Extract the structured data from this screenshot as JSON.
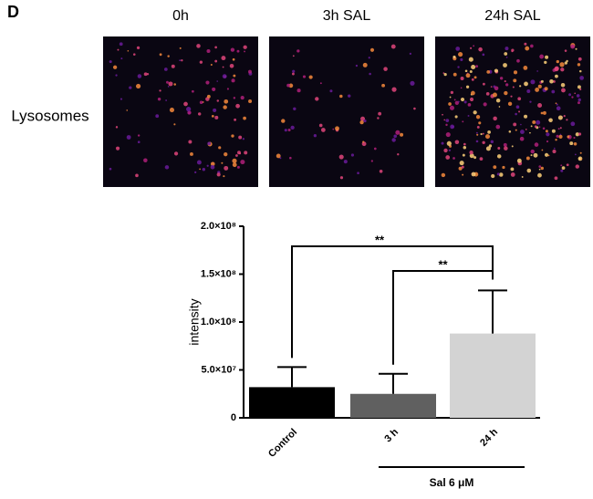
{
  "panel": {
    "label": "D",
    "row_label": "Lysosomes",
    "image_titles": [
      "0h",
      "3h SAL",
      "24h SAL"
    ]
  },
  "chart_data": {
    "type": "bar",
    "y_label": "intensity",
    "categories": [
      "Control",
      "3 h",
      "24 h"
    ],
    "values": [
      32000000,
      25000000,
      88000000
    ],
    "errors": [
      21000000,
      21000000,
      45000000
    ],
    "colors": [
      "#000000",
      "#606060",
      "#d3d3d3"
    ],
    "ylim": [
      0,
      200000000
    ],
    "yticks": [
      0,
      {
        "value": 50000000,
        "label": "5.0×10⁷"
      },
      {
        "value": 100000000,
        "label": "1.0×10⁸"
      },
      {
        "value": 150000000,
        "label": "1.5×10⁸"
      },
      {
        "value": 200000000,
        "label": "2.0×10⁸"
      }
    ],
    "significance": [
      {
        "from": 0,
        "to": 2,
        "label": "**"
      },
      {
        "from": 1,
        "to": 2,
        "label": "**"
      }
    ],
    "group_label": {
      "from": 1,
      "to": 2,
      "label": "Sal 6 μM"
    }
  }
}
